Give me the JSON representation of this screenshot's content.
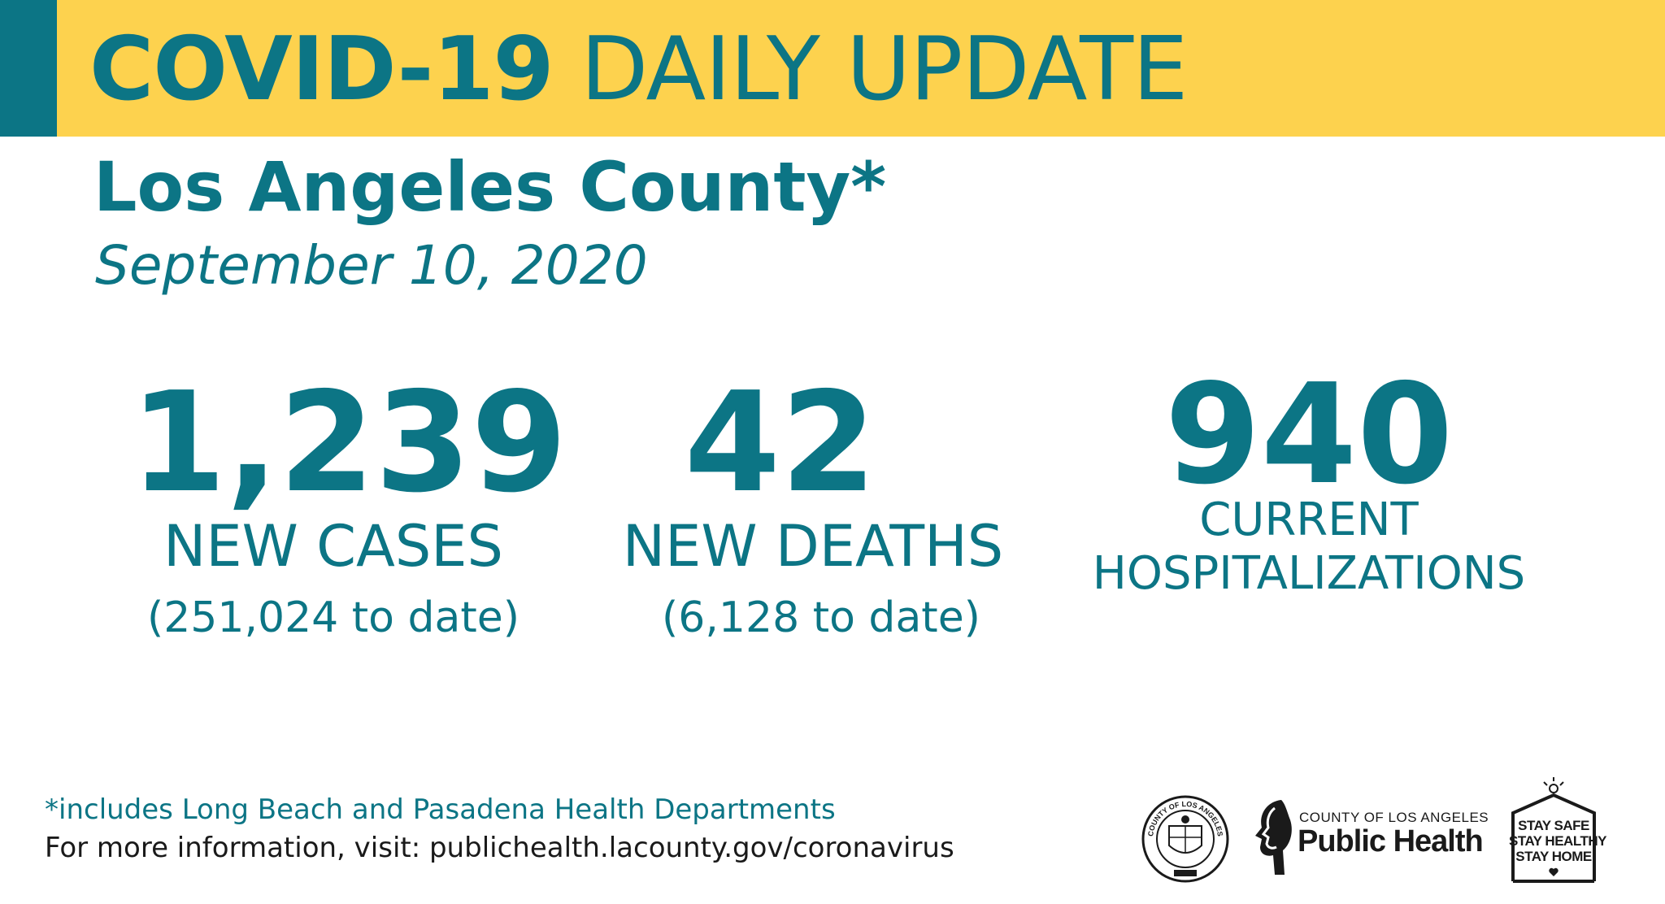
{
  "header": {
    "title_bold": "COVID-19",
    "title_regular": "DAILY UPDATE"
  },
  "county": "Los Angeles County*",
  "date": "September 10, 2020",
  "stats": {
    "cases": {
      "number": "1,239",
      "label": "NEW CASES",
      "subtext": "(251,024 to date)"
    },
    "deaths": {
      "number": "42",
      "label": "NEW DEATHS",
      "subtext": "(6,128 to date)"
    },
    "hospitalizations": {
      "number": "940",
      "label_line1": "CURRENT",
      "label_line2": "HOSPITALIZATIONS"
    }
  },
  "footer": {
    "footnote": "*includes Long Beach and Pasadena Health Departments",
    "info": "For more information, visit: publichealth.lacounty.gov/coronavirus"
  },
  "logos": {
    "public_health_small": "COUNTY OF LOS ANGELES",
    "public_health_big": "Public Health",
    "seal_text": "COUNTY OF LOS ANGELES",
    "stay_lines": [
      "STAY SAFE",
      "STAY HEALTHY",
      "STAY HOME"
    ]
  },
  "colors": {
    "primary": "#0c7585",
    "banner": "#fdd24e",
    "text_dark": "#1a1a1a"
  }
}
